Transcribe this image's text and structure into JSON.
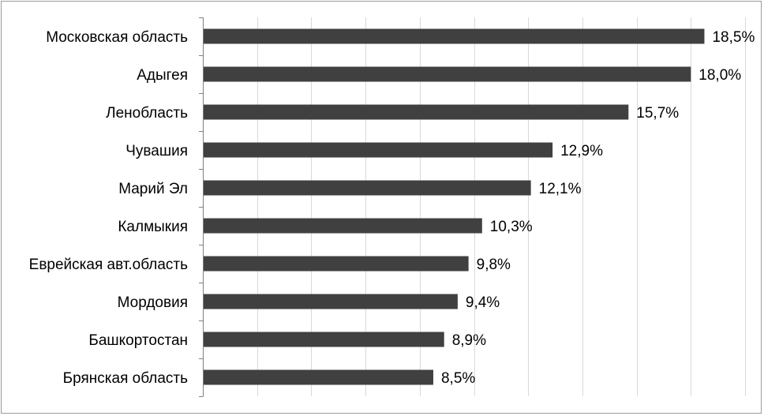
{
  "chart_data": {
    "type": "bar",
    "orientation": "horizontal",
    "categories": [
      "Московская область",
      "Адыгея",
      "Ленобласть",
      "Чувашия",
      "Марий  Эл",
      "Калмыкия",
      "Еврейская авт.область",
      "Мордовия",
      "Башкортостан",
      "Брянская область"
    ],
    "values": [
      18.5,
      18.0,
      15.7,
      12.9,
      12.1,
      10.3,
      9.8,
      9.4,
      8.9,
      8.5
    ],
    "value_labels": [
      "18,5%",
      "18,0%",
      "15,7%",
      "12,9%",
      "12,1%",
      "10,3%",
      "9,8%",
      "9,4%",
      "8,9%",
      "8,5%"
    ],
    "xlim": [
      0,
      20
    ],
    "x_grid_step": 2,
    "grid": true,
    "bar_color": "#404040",
    "grid_color": "#d9d9d9",
    "axis_color": "#808080",
    "title": "",
    "xlabel": "",
    "ylabel": ""
  }
}
